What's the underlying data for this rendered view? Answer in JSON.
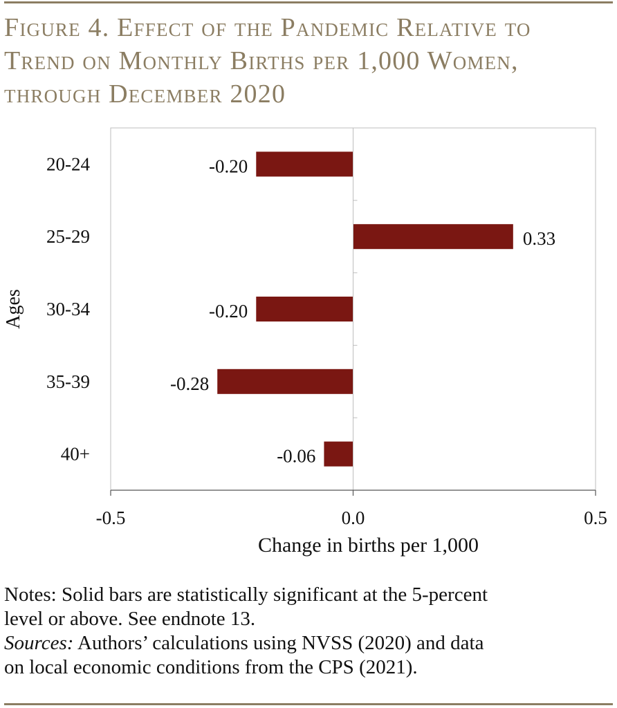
{
  "title_lines": [
    "Figure 4. Effect of the Pandemic Relative to",
    "Trend on Monthly Births per 1,000 Women,",
    "through December 2020"
  ],
  "notes": {
    "line1": "Notes: Solid bars are statistically significant at the 5-percent",
    "line2": "level or above.  See endnote 13.",
    "sources_label": "Sources:",
    "sources_line1_rest": " Authors’ calculations using NVSS (2020) and data",
    "sources_line2": "on local economic conditions from the CPS (2021)."
  },
  "colors": {
    "title": "#8b7d62",
    "bar": "#7a1712",
    "rule": "#8b7d62"
  },
  "chart_data": {
    "type": "bar",
    "orientation": "horizontal",
    "categories": [
      "20-24",
      "25-29",
      "30-34",
      "35-39",
      "40+"
    ],
    "values": [
      -0.2,
      0.33,
      -0.2,
      -0.28,
      -0.06
    ],
    "data_labels": [
      "-0.20",
      "0.33",
      "-0.20",
      "-0.28",
      "-0.06"
    ],
    "xlabel": "Change in births per 1,000",
    "ylabel": "Ages",
    "xlim": [
      -0.5,
      0.5
    ],
    "xticks": [
      -0.5,
      0.0,
      0.5
    ],
    "xtick_labels": [
      "-0.5",
      "0.0",
      "0.5"
    ],
    "grid": false,
    "legend": "none"
  }
}
